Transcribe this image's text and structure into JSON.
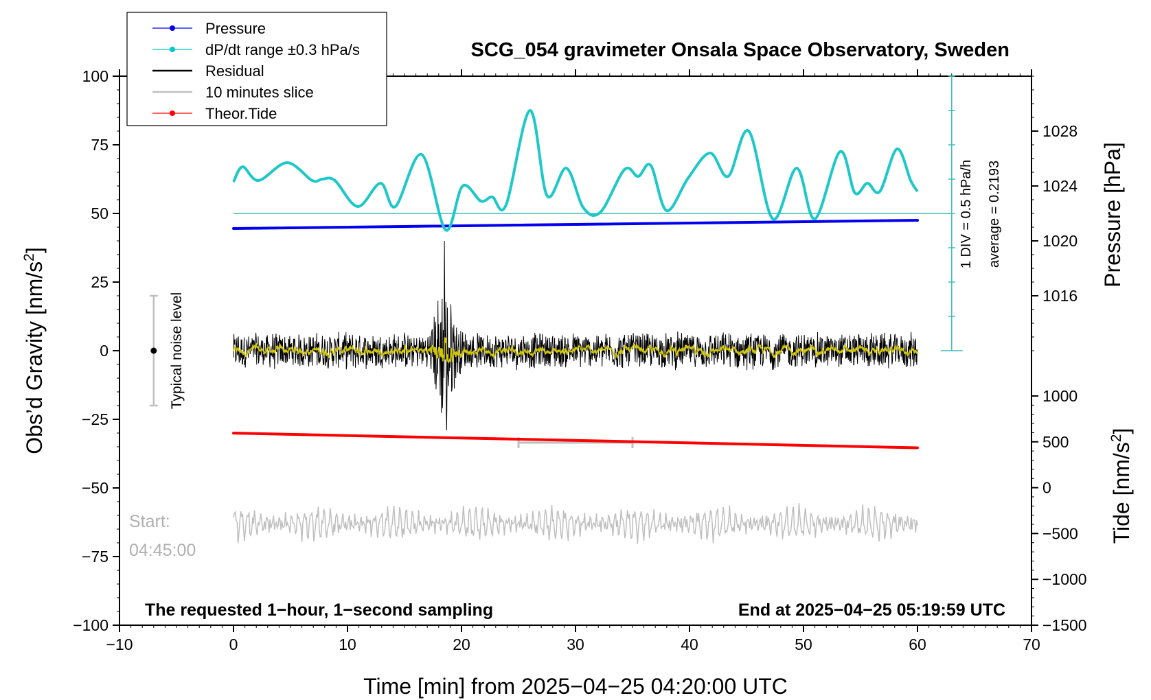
{
  "chart_data": {
    "type": "line",
    "title": "SCG_054 gravimeter Onsala Space Observatory, Sweden",
    "xlabel": "Time [min] from 2025−04−25 04:20:00 UTC",
    "ylabel": "Obs’d Gravity [nm/s²]",
    "y2label": "Pressure [hPa]",
    "y3label": "Tide [nm/s²]",
    "xlim": [
      -10,
      70
    ],
    "ylim": [
      -100,
      100
    ],
    "x_ticks": [
      "−10",
      "0",
      "10",
      "20",
      "30",
      "40",
      "50",
      "60",
      "70"
    ],
    "x_tick_values": [
      -10,
      0,
      10,
      20,
      30,
      40,
      50,
      60,
      70
    ],
    "y_ticks": [
      "100",
      "75",
      "50",
      "25",
      "0",
      "−25",
      "−50",
      "−75",
      "−100"
    ],
    "y_tick_values": [
      100,
      75,
      50,
      25,
      0,
      -25,
      -50,
      -75,
      -100
    ],
    "pressure_axis": {
      "ticks": [
        "1028",
        "1024",
        "1020",
        "1016"
      ],
      "tick_values": [
        1028,
        1024,
        1020,
        1016
      ],
      "gravity_of_1028": 80,
      "gravity_of_1016": 20
    },
    "tide_axis": {
      "ticks": [
        "1000",
        "500",
        "0",
        "−500",
        "−1000",
        "−1500"
      ],
      "tick_values": [
        1000,
        500,
        0,
        -500,
        -1000,
        -1500
      ],
      "gravity_of_1000": -16.5,
      "gravity_of_minus1500": -100
    },
    "dpdt_scale": {
      "label1": "1 DIV = 0.5 hPa/h",
      "label2": "average = 0.2193",
      "x": 63,
      "ymin": 0,
      "ymax": 100,
      "divisions": 8
    },
    "legend": {
      "placement": "top-left",
      "items": [
        {
          "label": "Pressure",
          "color": "#0000ee",
          "marker": true
        },
        {
          "label": "dP/dt range ±0.3 hPa/s",
          "color": "#00c8c8",
          "marker": true
        },
        {
          "label": "Residual",
          "color": "#000000",
          "marker": false
        },
        {
          "label": "10 minutes slice",
          "color": "#bfbfbf",
          "marker": false
        },
        {
          "label": "Theor.Tide",
          "color": "#ff0000",
          "marker": true
        }
      ]
    },
    "series": [
      {
        "name": "Pressure",
        "color": "#0000ee",
        "axis": "pressure_hPa",
        "x": [
          0,
          60
        ],
        "values": [
          1020.9,
          1021.5
        ]
      },
      {
        "name": "dP/dt",
        "color": "#1ec8c8",
        "axis": "gravity",
        "x": [
          0,
          0.8,
          2.2,
          4.7,
          6.9,
          7.8,
          8.9,
          10.9,
          12.9,
          14.2,
          16.5,
          18.6,
          20.1,
          21.7,
          22.7,
          23.9,
          26,
          27.5,
          29.2,
          30.7,
          32.2,
          34.3,
          35.5,
          36.6,
          38,
          39.9,
          41.8,
          43.4,
          45.2,
          47.3,
          49.4,
          51,
          53.2,
          54.5,
          55.6,
          56.7,
          58.2,
          59.4,
          60
        ],
        "values": [
          61.5,
          67,
          62,
          68.5,
          62,
          62.5,
          62,
          52.5,
          61,
          52.5,
          71.5,
          44,
          60,
          54.5,
          56,
          53,
          87.5,
          56.5,
          66.5,
          52,
          50.5,
          66,
          63.5,
          67.5,
          51,
          63,
          72,
          63.5,
          80,
          48,
          66.5,
          48,
          72.5,
          57.5,
          61,
          58,
          73.5,
          62,
          58
        ]
      },
      {
        "name": "dP/dt zero line",
        "color": "#3cbcbc",
        "axis": "gravity",
        "x": [
          0,
          63
        ],
        "values": [
          50,
          50
        ]
      },
      {
        "name": "Theor.Tide",
        "color": "#ff0000",
        "axis": "tide_nm_s2",
        "x": [
          0,
          60
        ],
        "values": [
          595,
          435
        ]
      },
      {
        "name": "Residual",
        "color": "#000000",
        "axis": "gravity",
        "x_range": [
          0,
          60
        ],
        "typical_amplitude": 6,
        "event_center_min": 18.5,
        "event_peak": 40,
        "event_trough": -29
      },
      {
        "name": "Residual smoothed",
        "color": "#d4c800",
        "axis": "gravity",
        "x_range": [
          0,
          60
        ]
      },
      {
        "name": "10 minutes slice",
        "color": "#bfbfbf",
        "axis": "gravity",
        "x_range": [
          0,
          60
        ],
        "offset": -63,
        "amplitude": 5
      }
    ],
    "slice_marker": {
      "x_start": 25,
      "x_end": 35,
      "y": -33.5,
      "color": "#bfbfbf"
    },
    "noise_bar": {
      "x": -7,
      "ymin": -20,
      "ymax": 20,
      "label": "Typical noise level"
    },
    "annotations": {
      "start_label": "Start:",
      "start_time": "04:45:00",
      "bottom_left": "The requested 1−hour, 1−second sampling",
      "bottom_right": "End at 2025−04−25 05:19:59 UTC"
    }
  }
}
